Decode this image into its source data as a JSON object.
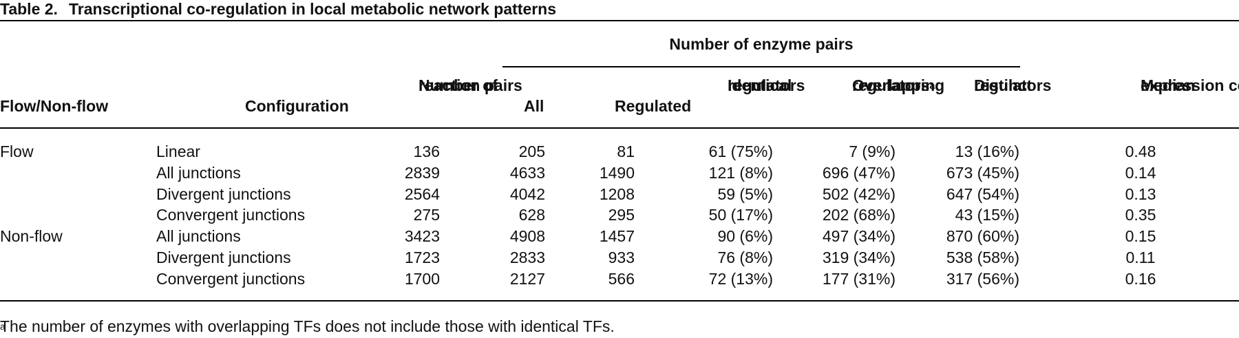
{
  "title": {
    "label": "Table 2.",
    "text": "Transcriptional co-regulation in local metabolic network patterns"
  },
  "header": {
    "group": "Number of enzyme pairs",
    "columns": [
      [
        "Flow/Non-flow"
      ],
      [
        "Configuration"
      ],
      [
        "Number of",
        "reaction pairs"
      ],
      [
        "All"
      ],
      [
        "Regulated"
      ],
      [
        "Identical",
        "regulators"
      ],
      [
        "Overlapping",
        "regulators"
      ],
      [
        "Distinct",
        "regulators"
      ],
      [
        "Median",
        "expression correlation"
      ]
    ],
    "overlapping_marker": "a"
  },
  "groups": [
    {
      "name": "Flow",
      "rows": [
        [
          "Linear",
          "136",
          "205",
          "81",
          "61 (75%)",
          "7 (9%)",
          "13 (16%)",
          "0.48"
        ],
        [
          "All junctions",
          "2839",
          "4633",
          "1490",
          "121 (8%)",
          "696 (47%)",
          "673 (45%)",
          "0.14"
        ],
        [
          "Divergent junctions",
          "2564",
          "4042",
          "1208",
          "59 (5%)",
          "502 (42%)",
          "647 (54%)",
          "0.13"
        ],
        [
          "Convergent junctions",
          "275",
          "628",
          "295",
          "50 (17%)",
          "202 (68%)",
          "43 (15%)",
          "0.35"
        ]
      ]
    },
    {
      "name": "Non-flow",
      "rows": [
        [
          "All junctions",
          "3423",
          "4908",
          "1457",
          "90 (6%)",
          "497 (34%)",
          "870 (60%)",
          "0.15"
        ],
        [
          "Divergent junctions",
          "1723",
          "2833",
          "933",
          "76 (8%)",
          "319 (34%)",
          "538 (58%)",
          "0.11"
        ],
        [
          "Convergent junctions",
          "1700",
          "2127",
          "566",
          "72 (13%)",
          "177 (31%)",
          "317 (56%)",
          "0.16"
        ]
      ]
    }
  ],
  "footnote": {
    "marker": "a",
    "text": "The number of enzymes with overlapping TFs does not include those with identical TFs."
  }
}
